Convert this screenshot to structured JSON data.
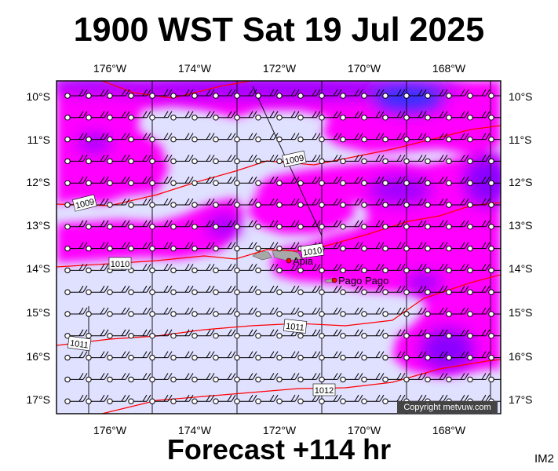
{
  "header": {
    "title": "1900 WST Sat 19 Jul 2025"
  },
  "footer": {
    "forecast": "Forecast +114 hr",
    "code": "IM2"
  },
  "map": {
    "copyright": "Copyright metvuw.com",
    "lon_labels": [
      "176°W",
      "174°W",
      "172°W",
      "170°W",
      "168°W"
    ],
    "lat_labels": [
      "10°S",
      "11°S",
      "12°S",
      "13°S",
      "14°S",
      "15°S",
      "16°S",
      "17°S"
    ],
    "isobar_labels": [
      "1009",
      "1009",
      "1010",
      "1010",
      "1011",
      "1011",
      "1012"
    ],
    "places": [
      "Apia",
      "Pago Pago"
    ],
    "colors": {
      "light": "#e0e0ff",
      "magenta": "#ff00ff",
      "purple": "#aa00ff",
      "blue": "#3333ff",
      "isobar": "#ff0000"
    }
  }
}
